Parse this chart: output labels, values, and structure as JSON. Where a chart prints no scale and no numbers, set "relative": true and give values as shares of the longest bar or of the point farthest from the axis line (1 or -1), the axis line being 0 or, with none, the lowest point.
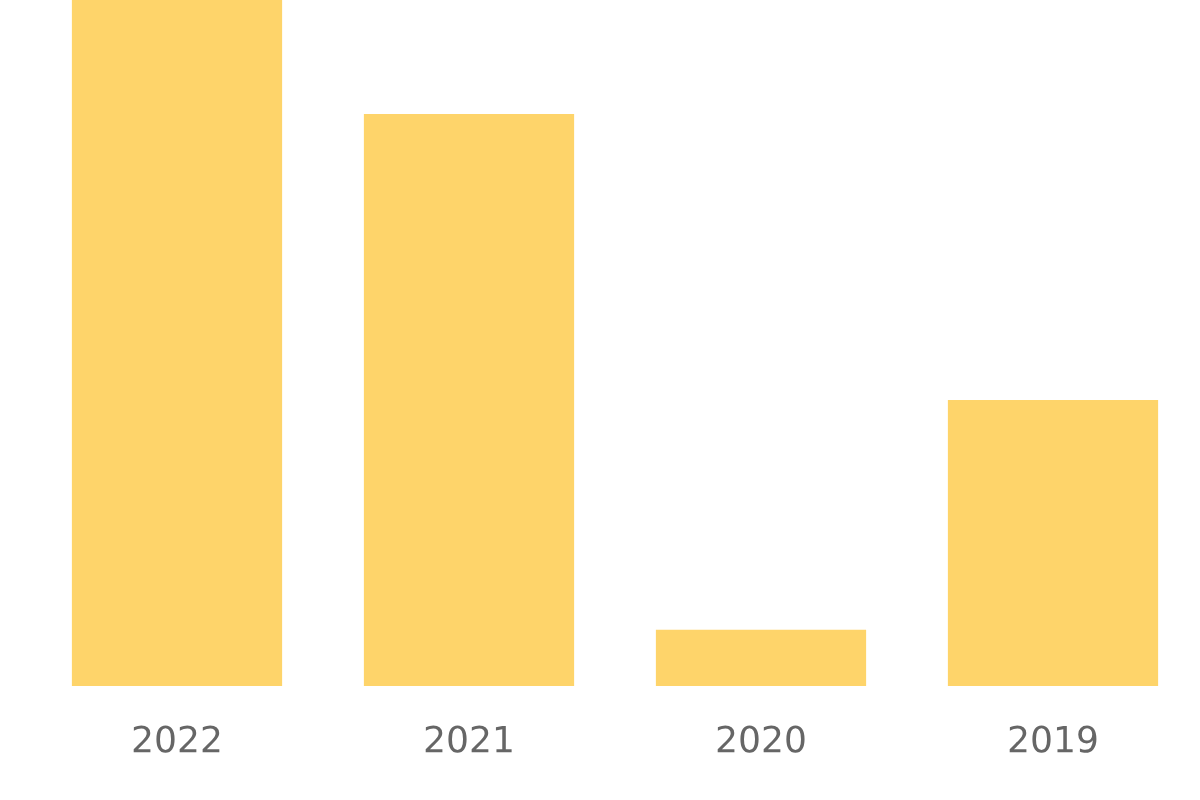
{
  "chart_data": {
    "type": "bar",
    "relative": true,
    "categories": [
      "2022",
      "2021",
      "2020",
      "2019"
    ],
    "values": [
      1,
      0.834,
      0.082,
      0.417
    ],
    "color": "#fed46a",
    "grid": false,
    "legend": false
  }
}
